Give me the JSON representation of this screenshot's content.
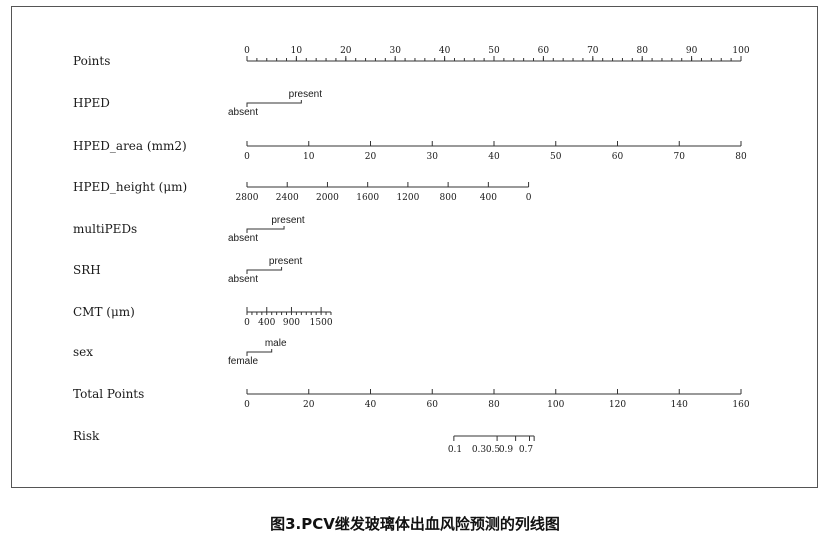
{
  "caption": "图3.PCV继发玻璃体出血风险预测的列线图",
  "chart_data": {
    "type": "nomogram",
    "rows": [
      {
        "label": "Points",
        "kind": "scale",
        "ticks": [
          0,
          10,
          20,
          30,
          40,
          50,
          60,
          70,
          80,
          90,
          100
        ],
        "labels_above": true,
        "points_range": [
          0,
          100
        ],
        "value_range": [
          0,
          100
        ],
        "minor_step": 2
      },
      {
        "label": "HPED",
        "kind": "categorical",
        "categories": [
          {
            "name": "absent",
            "points": 0
          },
          {
            "name": "present",
            "points": 11
          }
        ]
      },
      {
        "label": "HPED_area (mm2)",
        "kind": "scale",
        "ticks": [
          0,
          10,
          20,
          30,
          40,
          50,
          60,
          70,
          80
        ],
        "labels_above": false,
        "points_range": [
          0,
          100
        ],
        "value_range": [
          0,
          80
        ]
      },
      {
        "label": "HPED_height (μm)",
        "kind": "scale",
        "ticks": [
          2800,
          2400,
          2000,
          1600,
          1200,
          800,
          400,
          0
        ],
        "labels_above": false,
        "points_range": [
          0,
          57
        ],
        "value_range": [
          2800,
          0
        ]
      },
      {
        "label": "multiPEDs",
        "kind": "categorical",
        "categories": [
          {
            "name": "absent",
            "points": 0
          },
          {
            "name": "present",
            "points": 7.5
          }
        ]
      },
      {
        "label": "SRH",
        "kind": "categorical",
        "categories": [
          {
            "name": "absent",
            "points": 0
          },
          {
            "name": "present",
            "points": 7
          }
        ]
      },
      {
        "label": "CMT (μm)",
        "kind": "scale",
        "ticks": [
          0,
          400,
          900,
          1500
        ],
        "labels_above": false,
        "points_range": [
          0,
          17
        ],
        "value_range": [
          0,
          1700
        ],
        "minor_step": 100
      },
      {
        "label": "sex",
        "kind": "categorical",
        "categories": [
          {
            "name": "female",
            "points": 0
          },
          {
            "name": "male",
            "points": 5
          }
        ]
      },
      {
        "label": "Total Points",
        "kind": "scale",
        "ticks": [
          0,
          20,
          40,
          60,
          80,
          100,
          120,
          140,
          160
        ],
        "labels_above": false,
        "points_range": [
          0,
          100
        ],
        "value_range": [
          0,
          160
        ]
      },
      {
        "label": "Risk",
        "kind": "risk",
        "ticks": [
          0.1,
          0.3,
          0.5,
          0.7,
          0.9
        ],
        "tick_labels": [
          "0.1",
          "0.3",
          "0.5",
          "0.7",
          "0.9"
        ],
        "total_points_at": [
          67,
          81,
          87,
          93,
          91.5
        ]
      }
    ]
  }
}
